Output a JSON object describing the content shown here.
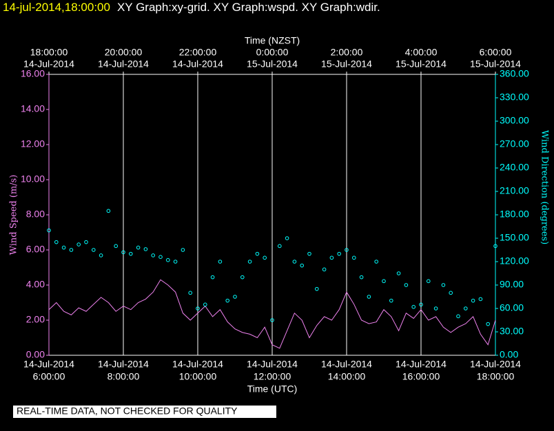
{
  "chart_data": {
    "type": "line",
    "title_stamp": "14-jul-2014,18:00:00",
    "title": "XY Graph:xy-grid.  XY Graph:wspd.  XY Graph:wdir.",
    "x_label": "Time (UTC)",
    "x2_label": "Time (NZST)",
    "y_label": "Wind Speed (m/s)",
    "y2_label": "Wind Direction (degrees)",
    "notice": "REAL-TIME DATA, NOT CHECKED FOR QUALITY",
    "grid": true,
    "xlim": [
      6,
      18
    ],
    "xticks": [
      {
        "value": 6,
        "label": [
          "14-Jul-2014",
          "6:00:00"
        ]
      },
      {
        "value": 8,
        "label": [
          "14-Jul-2014",
          "8:00:00"
        ]
      },
      {
        "value": 10,
        "label": [
          "14-Jul-2014",
          "10:00:00"
        ]
      },
      {
        "value": 12,
        "label": [
          "14-Jul-2014",
          "12:00:00"
        ]
      },
      {
        "value": 14,
        "label": [
          "14-Jul-2014",
          "14:00:00"
        ]
      },
      {
        "value": 16,
        "label": [
          "14-Jul-2014",
          "16:00:00"
        ]
      },
      {
        "value": 18,
        "label": [
          "14-Jul-2014",
          "18:00:00"
        ]
      }
    ],
    "x2ticks": [
      {
        "value": 6,
        "label": [
          "18:00:00",
          "14-Jul-2014"
        ]
      },
      {
        "value": 8,
        "label": [
          "20:00:00",
          "14-Jul-2014"
        ]
      },
      {
        "value": 10,
        "label": [
          "22:00:00",
          "14-Jul-2014"
        ]
      },
      {
        "value": 12,
        "label": [
          "0:00:00",
          "15-Jul-2014"
        ]
      },
      {
        "value": 14,
        "label": [
          "2:00:00",
          "15-Jul-2014"
        ]
      },
      {
        "value": 16,
        "label": [
          "4:00:00",
          "15-Jul-2014"
        ]
      },
      {
        "value": 18,
        "label": [
          "6:00:00",
          "15-Jul-2014"
        ]
      }
    ],
    "ylim": [
      0,
      16
    ],
    "yticks": [
      {
        "value": 0,
        "label": "0.00"
      },
      {
        "value": 2,
        "label": "2.00"
      },
      {
        "value": 4,
        "label": "4.00"
      },
      {
        "value": 6,
        "label": "6.00"
      },
      {
        "value": 8,
        "label": "8.00"
      },
      {
        "value": 10,
        "label": "10.00"
      },
      {
        "value": 12,
        "label": "12.00"
      },
      {
        "value": 14,
        "label": "14.00"
      },
      {
        "value": 16,
        "label": "16.00"
      }
    ],
    "y2lim": [
      0,
      360
    ],
    "y2ticks": [
      {
        "value": 0,
        "label": "0.00"
      },
      {
        "value": 30,
        "label": "30.00"
      },
      {
        "value": 60,
        "label": "60.00"
      },
      {
        "value": 90,
        "label": "90.00"
      },
      {
        "value": 120,
        "label": "120.00"
      },
      {
        "value": 150,
        "label": "150.00"
      },
      {
        "value": 180,
        "label": "180.00"
      },
      {
        "value": 210,
        "label": "210.00"
      },
      {
        "value": 240,
        "label": "240.00"
      },
      {
        "value": 270,
        "label": "270.00"
      },
      {
        "value": 300,
        "label": "300.00"
      },
      {
        "value": 330,
        "label": "330.00"
      },
      {
        "value": 360,
        "label": "360.00"
      }
    ],
    "x": [
      6.0,
      6.2,
      6.4,
      6.6,
      6.8,
      7.0,
      7.2,
      7.4,
      7.6,
      7.8,
      8.0,
      8.2,
      8.4,
      8.6,
      8.8,
      9.0,
      9.2,
      9.4,
      9.6,
      9.8,
      10.0,
      10.2,
      10.4,
      10.6,
      10.8,
      11.0,
      11.2,
      11.4,
      11.6,
      11.8,
      12.0,
      12.2,
      12.4,
      12.6,
      12.8,
      13.0,
      13.2,
      13.4,
      13.6,
      13.8,
      14.0,
      14.2,
      14.4,
      14.6,
      14.8,
      15.0,
      15.2,
      15.4,
      15.6,
      15.8,
      16.0,
      16.2,
      16.4,
      16.6,
      16.8,
      17.0,
      17.2,
      17.4,
      17.6,
      17.8,
      18.0
    ],
    "series": [
      {
        "color": "#ee82ee",
        "style": "line",
        "values": [
          2.6,
          3.0,
          2.5,
          2.3,
          2.7,
          2.5,
          2.9,
          3.3,
          3.0,
          2.5,
          2.8,
          2.6,
          3.0,
          3.2,
          3.6,
          4.3,
          4.0,
          3.6,
          2.4,
          2.0,
          2.4,
          2.8,
          2.2,
          2.6,
          1.9,
          1.5,
          1.3,
          1.2,
          1.0,
          1.6,
          0.6,
          0.4,
          1.4,
          2.4,
          2.0,
          1.0,
          1.7,
          2.2,
          2.0,
          2.6,
          3.6,
          2.9,
          2.0,
          1.8,
          1.9,
          2.6,
          2.2,
          1.4,
          2.4,
          2.1,
          2.6,
          2.0,
          2.2,
          1.6,
          1.3,
          1.6,
          1.8,
          2.2,
          1.2,
          0.6,
          2.0
        ]
      },
      {
        "color": "#00ffff",
        "style": "points",
        "axis": "y2",
        "values": [
          160,
          145,
          138,
          135,
          142,
          145,
          135,
          128,
          185,
          140,
          132,
          130,
          138,
          136,
          128,
          126,
          122,
          120,
          135,
          80,
          60,
          65,
          100,
          120,
          70,
          75,
          100,
          120,
          130,
          125,
          45,
          140,
          150,
          120,
          115,
          130,
          85,
          110,
          125,
          130,
          135,
          125,
          100,
          75,
          120,
          95,
          70,
          105,
          90,
          62,
          65,
          95,
          60,
          90,
          80,
          50,
          60,
          70,
          72,
          40,
          140
        ]
      }
    ]
  }
}
